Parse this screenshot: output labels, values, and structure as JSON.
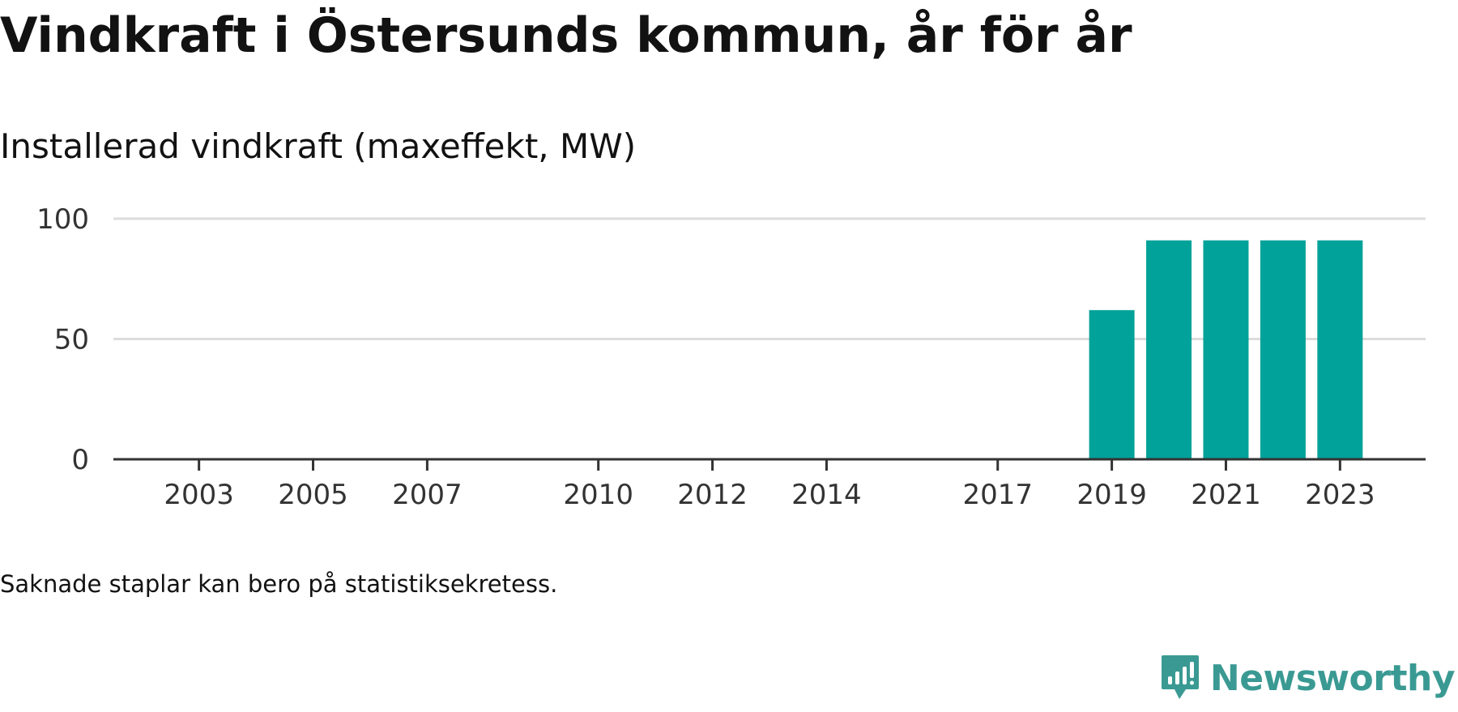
{
  "header": {
    "title": "Vindkraft i Östersunds kommun, år för år",
    "subtitle": "Installerad vindkraft (maxeffekt, MW)"
  },
  "footer": {
    "note": "Saknade staplar kan bero på statistiksekretess.",
    "brand": "Newsworthy"
  },
  "colors": {
    "bar": "#00a29a",
    "grid": "#dcdcdc",
    "axis": "#333333",
    "brand": "#3a9a93"
  },
  "chart_data": {
    "type": "bar",
    "title": "Vindkraft i Östersunds kommun, år för år",
    "ylabel": "Installerad vindkraft (maxeffekt, MW)",
    "xlabel": "",
    "categories": [
      2003,
      2004,
      2005,
      2006,
      2007,
      2008,
      2009,
      2010,
      2011,
      2012,
      2013,
      2014,
      2015,
      2016,
      2017,
      2018,
      2019,
      2020,
      2021,
      2022,
      2023
    ],
    "values": [
      0,
      0,
      0,
      0,
      0,
      0,
      0,
      0,
      0,
      0,
      0,
      0,
      0,
      0,
      0,
      0,
      62,
      91,
      91,
      91,
      91
    ],
    "x_tick_labels": [
      "2003",
      "2005",
      "2007",
      "2010",
      "2012",
      "2014",
      "2017",
      "2019",
      "2021",
      "2023"
    ],
    "y_ticks": [
      0,
      50,
      100
    ],
    "ylim": [
      0,
      100
    ],
    "xlim": [
      2001.5,
      2024.5
    ],
    "grid": true,
    "legend": "none"
  }
}
